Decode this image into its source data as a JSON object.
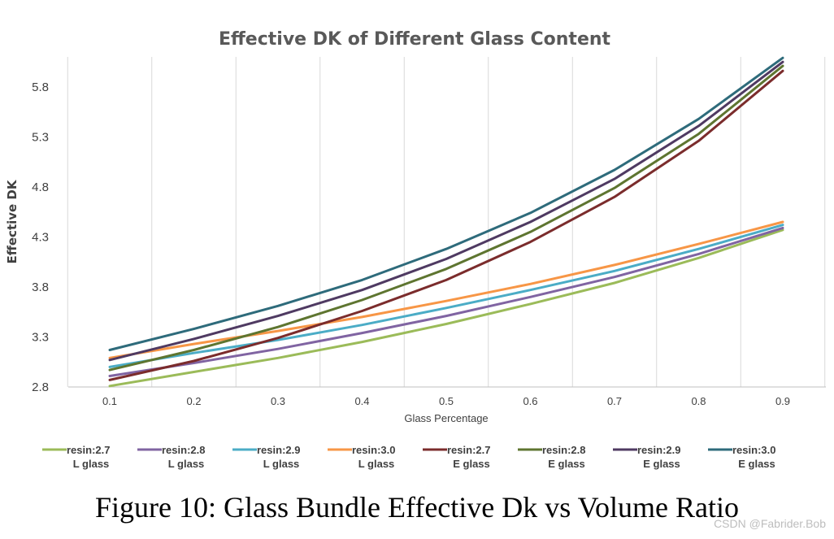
{
  "caption": "Figure 10: Glass Bundle Effective Dk vs Volume Ratio",
  "watermark": "CSDN @Fabrider.Bob",
  "chart_data": {
    "type": "line",
    "title": "Effective DK of Different Glass Content",
    "xlabel": "Glass Percentage",
    "ylabel": "Effective DK",
    "x": [
      0.1,
      0.2,
      0.3,
      0.4,
      0.5,
      0.6,
      0.7,
      0.8,
      0.9
    ],
    "x_tick_labels": [
      "0.1",
      "0.2",
      "0.3",
      "0.4",
      "0.5",
      "0.6",
      "0.7",
      "0.8",
      "0.9"
    ],
    "ylim": [
      2.8,
      6.1
    ],
    "yticks": [
      2.8,
      3.3,
      3.8,
      4.3,
      4.8,
      5.3,
      5.8
    ],
    "y_tick_labels": [
      "2.8",
      "3.3",
      "3.8",
      "4.3",
      "4.8",
      "5.3",
      "5.8"
    ],
    "grid": "vertical",
    "legend_position": "bottom",
    "series": [
      {
        "name": "resin:2.7",
        "sub": "L glass",
        "color": "#9bbb59",
        "values": [
          2.81,
          2.95,
          3.09,
          3.25,
          3.43,
          3.63,
          3.84,
          4.09,
          4.37
        ]
      },
      {
        "name": "resin:2.8",
        "sub": "L glass",
        "color": "#8064a2",
        "values": [
          2.91,
          3.04,
          3.18,
          3.34,
          3.51,
          3.7,
          3.9,
          4.13,
          4.39
        ]
      },
      {
        "name": "resin:2.9",
        "sub": "L glass",
        "color": "#4bacc6",
        "values": [
          3.0,
          3.14,
          3.27,
          3.42,
          3.59,
          3.77,
          3.96,
          4.18,
          4.42
        ]
      },
      {
        "name": "resin:3.0",
        "sub": "L glass",
        "color": "#f79646",
        "values": [
          3.09,
          3.23,
          3.36,
          3.5,
          3.66,
          3.83,
          4.02,
          4.23,
          4.45
        ]
      },
      {
        "name": "resin:2.7",
        "sub": "E glass",
        "color": "#7b2c2c",
        "values": [
          2.87,
          3.06,
          3.29,
          3.56,
          3.87,
          4.25,
          4.7,
          5.26,
          5.96
        ]
      },
      {
        "name": "resin:2.8",
        "sub": "E glass",
        "color": "#5e7530",
        "values": [
          2.97,
          3.17,
          3.4,
          3.67,
          3.98,
          4.35,
          4.79,
          5.33,
          6.01
        ]
      },
      {
        "name": "resin:2.9",
        "sub": "E glass",
        "color": "#4f3a62",
        "values": [
          3.07,
          3.28,
          3.51,
          3.77,
          4.08,
          4.45,
          4.88,
          5.41,
          6.05
        ]
      },
      {
        "name": "resin:3.0",
        "sub": "E glass",
        "color": "#2e6b7b",
        "values": [
          3.17,
          3.38,
          3.61,
          3.87,
          4.18,
          4.54,
          4.97,
          5.48,
          6.09
        ]
      }
    ]
  }
}
